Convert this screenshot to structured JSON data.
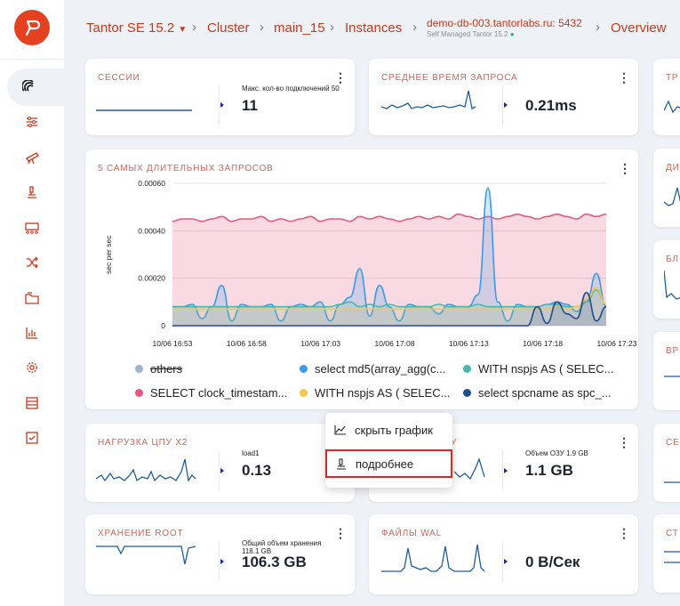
{
  "breadcrumb": {
    "items": [
      "Tantor SE 15.2",
      "Cluster",
      "main_15",
      "Instances"
    ],
    "instance": "demo-db-003.tantorlabs.ru: 5432",
    "instance_sub": "Self Managed Tantor 15.2",
    "last": "Overview"
  },
  "cards": {
    "sessions": {
      "title": "СЕССИИ",
      "label": "Макс. кол-во подключений 50",
      "value": "11"
    },
    "avg_query": {
      "title": "СРЕДНЕЕ ВРЕМЯ ЗАПРОСА",
      "value": "0.21ms"
    },
    "right1": {
      "title": "ТР"
    },
    "right2": {
      "title": "ДИ"
    },
    "right3": {
      "title": "БЛ"
    },
    "right4": {
      "title": "ВР"
    },
    "right5": {
      "title": "СЕ"
    },
    "right6": {
      "title": "СТ"
    },
    "cpu": {
      "title": "НАГРУЗКА ЦПУ X2",
      "label": "load1",
      "value": "0.13"
    },
    "memory": {
      "title_tail": "У",
      "label": "Объем ОЗУ 1.9 GB",
      "value": "1.1 GB"
    },
    "storage": {
      "title": "ХРАНЕНИЕ ROOT",
      "label": "Общий объем хранения 118.1 GB",
      "value": "106.3 GB"
    },
    "wal": {
      "title": "ФАЙЛЫ WAL",
      "value": "0 B/Сек"
    }
  },
  "popup": {
    "hide": "скрыть график",
    "details": "подробнее"
  },
  "chart_data": {
    "type": "area",
    "title": "5 САМЫХ ДЛИТЕЛЬНЫХ ЗАПРОСОВ",
    "ylabel": "sec per sec",
    "ylim": [
      0,
      0.0006
    ],
    "yticks": [
      "0.00060",
      "0.00040",
      "0.00020",
      "0"
    ],
    "xticks": [
      "10/06 16:53",
      "10/06 16:58",
      "10/06 17:03",
      "10/06 17:08",
      "10/06 17:13",
      "10/06 17:18",
      "10/06 17:23"
    ],
    "legend": [
      {
        "name": "others",
        "color": "#9fb3c8",
        "hidden": true
      },
      {
        "name": "select md5(array_agg(c...",
        "color": "#3a9be8"
      },
      {
        "name": "WITH nspjs AS ( SELEC...",
        "color": "#46b8ad"
      },
      {
        "name": "SELECT clock_timestam...",
        "color": "#e8587a"
      },
      {
        "name": "WITH nspjs AS ( SELEC...",
        "color": "#f2c94c"
      },
      {
        "name": "select spcname as spc_...",
        "color": "#1f4e8c"
      }
    ],
    "series": [
      {
        "name": "SELECT clock_timestam...",
        "color": "#e8587a",
        "values": [
          0.00044,
          0.00045,
          0.00045,
          0.00044,
          0.00045,
          0.00046,
          0.00044,
          0.00045,
          0.00045,
          0.00046,
          0.00044,
          0.00045,
          0.00044,
          0.00045,
          0.00046,
          0.00044,
          0.00045,
          0.00045,
          0.00044,
          0.00046,
          0.00045,
          0.00046,
          0.00045,
          0.00044,
          0.00045,
          0.00046,
          0.00045,
          0.00046,
          0.00045,
          0.00047,
          0.00046,
          0.00045,
          0.00046,
          0.00045,
          0.00046,
          0.00047,
          0.00046,
          0.00045,
          0.00046,
          0.00047,
          0.00046,
          0.00045,
          0.00047,
          0.00046,
          0.00047
        ]
      },
      {
        "name": "select md5(array_agg(c...",
        "color": "#3a9be8",
        "values": [
          8e-05,
          8e-05,
          9e-05,
          3e-05,
          8e-05,
          0.00017,
          2e-05,
          9e-05,
          8e-05,
          8e-05,
          9e-05,
          2e-05,
          8e-05,
          9e-05,
          8e-05,
          0.0001,
          2e-05,
          9e-05,
          0.00012,
          0.00024,
          4e-05,
          0.00017,
          8e-05,
          2e-05,
          9e-05,
          8e-05,
          8e-05,
          5e-05,
          9e-05,
          8e-05,
          8e-05,
          0.00013,
          0.00058,
          0.0001,
          2e-05,
          9e-05,
          8e-05,
          8e-05,
          9e-05,
          0.0001,
          9e-05,
          6e-05,
          0.0001,
          0.00022,
          8e-05
        ]
      },
      {
        "name": "WITH nspjs AS ( SELEC...",
        "color": "#46b8ad",
        "values": [
          8e-05,
          8e-05,
          8e-05,
          8e-05,
          8e-05,
          8e-05,
          8e-05,
          8e-05,
          8e-05,
          8e-05,
          8e-05,
          8e-05,
          8e-05,
          8e-05,
          8e-05,
          8e-05,
          8e-05,
          9e-05,
          0.0001,
          8e-05,
          9e-05,
          8e-05,
          9e-05,
          8e-05,
          8e-05,
          8e-05,
          8e-05,
          9e-05,
          8e-05,
          8e-05,
          8e-05,
          9e-05,
          8e-05,
          8e-05,
          8e-05,
          8e-05,
          8e-05,
          8e-05,
          9e-05,
          9e-05,
          8e-05,
          8e-05,
          0.0001,
          0.00015,
          9e-05
        ]
      },
      {
        "name": "WITH nspjs AS ( SELEC...",
        "color": "#f2c94c",
        "values": [
          7e-05,
          7e-05,
          7e-05,
          7e-05,
          7e-05,
          7e-05,
          7e-05,
          7e-05,
          7e-05,
          7e-05,
          7e-05,
          7e-05,
          7e-05,
          7e-05,
          7e-05,
          7e-05,
          7e-05,
          7e-05,
          7e-05,
          7e-05,
          7e-05,
          7e-05,
          7e-05,
          7e-05,
          7e-05,
          7e-05,
          7e-05,
          7e-05,
          7e-05,
          7e-05,
          7e-05,
          7e-05,
          7e-05,
          7e-05,
          7e-05,
          7e-05,
          7e-05,
          7e-05,
          7e-05,
          8e-05,
          7e-05,
          8e-05,
          0.00011,
          0.00016,
          9e-05
        ]
      },
      {
        "name": "select spcname as spc_...",
        "color": "#1f4e8c",
        "values": [
          0,
          0,
          0,
          0,
          0,
          0,
          0,
          0,
          0,
          0,
          0,
          0,
          0,
          0,
          0,
          0,
          0,
          0,
          0,
          0,
          0,
          0,
          0,
          0,
          0,
          0,
          0,
          0,
          0,
          0,
          0,
          0,
          0,
          0,
          0,
          0,
          0,
          8e-05,
          1e-05,
          0.0001,
          5e-05,
          3e-05,
          0.00014,
          2e-05,
          8e-05
        ]
      }
    ]
  }
}
